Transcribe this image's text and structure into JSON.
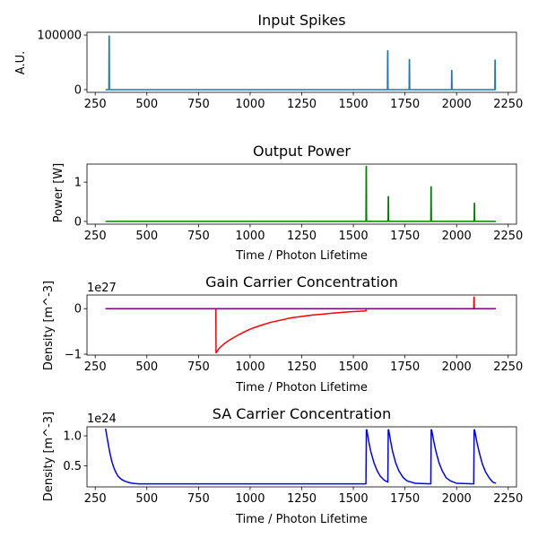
{
  "chart_data": [
    {
      "type": "line",
      "title": "Input Spikes",
      "xlabel": "",
      "ylabel": "A.U.",
      "offset_text": "",
      "xlim": [
        210,
        2290
      ],
      "ylim": [
        -5000,
        105000
      ],
      "x_ticks": [
        250,
        500,
        750,
        1000,
        1250,
        1500,
        1750,
        2000,
        2250
      ],
      "y_ticks": [
        0,
        100000
      ],
      "y_tick_labels": [
        "0",
        "100000"
      ],
      "series": [
        {
          "color": "#1f77b4",
          "x": [
            300,
            316,
            317,
            318,
            319,
            1665,
            1666,
            1667,
            1668,
            1669,
            1770,
            1771,
            1772,
            1773,
            1774,
            1975,
            1976,
            1977,
            1978,
            1979,
            2185,
            2186,
            2187,
            2188,
            2189,
            2190
          ],
          "y": [
            0,
            0,
            98000,
            98000,
            0,
            0,
            71000,
            71000,
            0,
            0,
            0,
            55000,
            55000,
            0,
            0,
            0,
            35000,
            35000,
            0,
            0,
            0,
            54000,
            54000,
            0,
            0,
            0
          ]
        }
      ]
    },
    {
      "type": "line",
      "title": "Output Power",
      "xlabel": "Time / Photon Lifetime",
      "ylabel": "Power [W]",
      "offset_text": "",
      "xlim": [
        210,
        2290
      ],
      "ylim": [
        -0.07,
        1.46
      ],
      "x_ticks": [
        250,
        500,
        750,
        1000,
        1250,
        1500,
        1750,
        2000,
        2250
      ],
      "y_ticks": [
        0,
        1
      ],
      "y_tick_labels": [
        "0",
        "1"
      ],
      "series": [
        {
          "color": "#008000",
          "x": [
            300,
            1561,
            1562,
            1563,
            1564,
            1668,
            1669,
            1670,
            1671,
            1875,
            1876,
            1877,
            1878,
            2085,
            2086,
            2087,
            2088,
            2190
          ],
          "y": [
            0,
            0,
            1.4,
            1.4,
            0,
            0,
            0.63,
            0.63,
            0,
            0,
            0.88,
            0.88,
            0,
            0,
            0.46,
            0.46,
            0,
            0
          ]
        }
      ]
    },
    {
      "type": "line",
      "title": "Gain Carrier Concentration",
      "xlabel": "Time / Photon Lifetime",
      "ylabel": "Density [m^-3]",
      "offset_text": "1e27",
      "xlim": [
        210,
        2290
      ],
      "ylim": [
        -1.02,
        0.3
      ],
      "x_ticks": [
        250,
        500,
        750,
        1000,
        1250,
        1500,
        1750,
        2000,
        2250
      ],
      "y_ticks": [
        -1,
        0
      ],
      "y_tick_labels": [
        "−1",
        "0"
      ],
      "series": [
        {
          "color": "#ff0000",
          "x": [
            300,
            834,
            835,
            836,
            850,
            875,
            900,
            950,
            1000,
            1050,
            1100,
            1150,
            1200,
            1250,
            1300,
            1350,
            1400,
            1450,
            1500,
            1561,
            1562,
            2083,
            2084,
            2085,
            2086,
            2190
          ],
          "y": [
            0,
            0,
            -0.97,
            -0.97,
            -0.87,
            -0.77,
            -0.69,
            -0.56,
            -0.45,
            -0.37,
            -0.3,
            -0.25,
            -0.2,
            -0.17,
            -0.14,
            -0.12,
            -0.1,
            -0.08,
            -0.065,
            -0.05,
            0,
            0,
            0.25,
            0.25,
            0,
            0
          ]
        },
        {
          "color": "#800080",
          "x": [
            300,
            2190
          ],
          "y": [
            0,
            0
          ]
        }
      ]
    },
    {
      "type": "line",
      "title": "SA Carrier Concentration",
      "xlabel": "Time / Photon Lifetime",
      "ylabel": "Density [m^-3]",
      "offset_text": "1e24",
      "xlim": [
        210,
        2290
      ],
      "ylim": [
        0.15,
        1.15
      ],
      "x_ticks": [
        250,
        500,
        750,
        1000,
        1250,
        1500,
        1750,
        2000,
        2250
      ],
      "y_ticks": [
        0.5,
        1.0
      ],
      "y_tick_labels": [
        "0.5",
        "1.0"
      ],
      "series": [
        {
          "color": "#0000ff",
          "x": [
            300,
            310,
            320,
            330,
            340,
            350,
            360,
            375,
            390,
            410,
            430,
            460,
            500,
            1561,
            1563,
            1565,
            1575,
            1585,
            1600,
            1615,
            1630,
            1650,
            1667,
            1669,
            1671,
            1680,
            1690,
            1705,
            1720,
            1740,
            1760,
            1800,
            1875,
            1877,
            1879,
            1890,
            1900,
            1915,
            1930,
            1950,
            1970,
            2000,
            2083,
            2085,
            2087,
            2098,
            2110,
            2125,
            2140,
            2160,
            2175,
            2190
          ],
          "y": [
            1.12,
            0.92,
            0.73,
            0.58,
            0.47,
            0.39,
            0.33,
            0.28,
            0.25,
            0.225,
            0.21,
            0.2,
            0.2,
            0.2,
            1.1,
            1.1,
            0.9,
            0.73,
            0.55,
            0.42,
            0.33,
            0.26,
            0.23,
            1.1,
            1.1,
            0.92,
            0.74,
            0.55,
            0.42,
            0.31,
            0.25,
            0.21,
            0.2,
            1.1,
            1.1,
            0.9,
            0.74,
            0.55,
            0.42,
            0.3,
            0.25,
            0.21,
            0.2,
            1.1,
            1.1,
            0.9,
            0.72,
            0.53,
            0.4,
            0.29,
            0.23,
            0.21
          ]
        }
      ]
    }
  ]
}
